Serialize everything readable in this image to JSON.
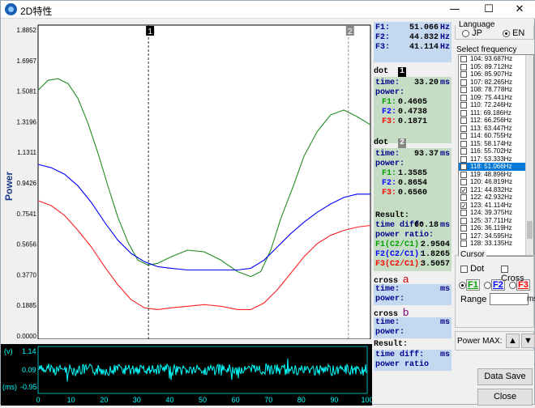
{
  "window": {
    "title": "2D特性",
    "min": "—",
    "max": "☐",
    "close": "✕"
  },
  "plot": {
    "ylabel": "Power",
    "yticks": [
      "1.8852",
      "1.6967",
      "1.5081",
      "1.3196",
      "1.1311",
      "0.9426",
      "0.7541",
      "0.5656",
      "0.3770",
      "0.1885",
      "0.0000"
    ],
    "cursor1_label": "1",
    "cursor2_label": "2",
    "colors": {
      "green": "#228b22",
      "blue": "#0000ff",
      "red": "#ff2020",
      "bg": "#ffffff"
    }
  },
  "chart_data": {
    "type": "line",
    "ylabel": "Power",
    "ylim": [
      0,
      1.8852
    ],
    "xlim": [
      0,
      100
    ],
    "series": [
      {
        "name": "F1",
        "color": "#228b22",
        "x": [
          0,
          3,
          6,
          9,
          12,
          15,
          18,
          21,
          24,
          27,
          30,
          33,
          36,
          40,
          45,
          50,
          55,
          60,
          64,
          67,
          70,
          73,
          77,
          80,
          84,
          88,
          92,
          96,
          100
        ],
        "values": [
          1.5,
          1.56,
          1.57,
          1.54,
          1.45,
          1.3,
          1.12,
          0.92,
          0.73,
          0.58,
          0.47,
          0.44,
          0.45,
          0.49,
          0.53,
          0.52,
          0.47,
          0.4,
          0.37,
          0.4,
          0.53,
          0.72,
          0.93,
          1.1,
          1.25,
          1.35,
          1.38,
          1.34,
          1.29
        ]
      },
      {
        "name": "F2",
        "color": "#0000ff",
        "x": [
          0,
          4,
          8,
          12,
          16,
          20,
          24,
          28,
          32,
          36,
          40,
          45,
          50,
          55,
          60,
          64,
          68,
          72,
          76,
          80,
          84,
          88,
          92,
          96,
          100
        ],
        "values": [
          1.05,
          1.03,
          0.99,
          0.92,
          0.82,
          0.7,
          0.59,
          0.51,
          0.46,
          0.43,
          0.42,
          0.41,
          0.41,
          0.41,
          0.41,
          0.42,
          0.47,
          0.55,
          0.63,
          0.7,
          0.76,
          0.81,
          0.85,
          0.87,
          0.87
        ]
      },
      {
        "name": "F3",
        "color": "#ff2020",
        "x": [
          0,
          4,
          8,
          12,
          16,
          20,
          24,
          28,
          32,
          36,
          40,
          45,
          50,
          55,
          60,
          64,
          68,
          72,
          76,
          80,
          84,
          88,
          92,
          96,
          100
        ],
        "values": [
          0.83,
          0.8,
          0.74,
          0.65,
          0.55,
          0.43,
          0.32,
          0.23,
          0.18,
          0.17,
          0.18,
          0.19,
          0.2,
          0.19,
          0.17,
          0.17,
          0.21,
          0.29,
          0.39,
          0.49,
          0.57,
          0.62,
          0.65,
          0.67,
          0.68
        ]
      }
    ],
    "cursors": [
      {
        "label": "1",
        "x": 33.2
      },
      {
        "label": "2",
        "x": 93.37
      }
    ]
  },
  "bottom": {
    "ytick_top": "1.14",
    "ytick_mid": "0.09",
    "ytick_bot": "-0.95",
    "unit_top": "(v)",
    "unit_bot": "(ms)",
    "xticks": [
      "0",
      "10",
      "20",
      "30",
      "40",
      "50",
      "60",
      "70",
      "80",
      "90",
      "100"
    ],
    "color": "#00ffff"
  },
  "info": {
    "freqs": [
      {
        "label": "F1:",
        "value": "51.066",
        "unit": "Hz"
      },
      {
        "label": "F2:",
        "value": "44.832",
        "unit": "Hz"
      },
      {
        "label": "F3:",
        "value": "41.114",
        "unit": "Hz"
      }
    ],
    "dot_label": "dot",
    "dot1": {
      "num": "1",
      "time_label": "time:",
      "time_value": "33.20",
      "time_unit": "ms",
      "power_label": "power:",
      "f1": "0.4605",
      "f2": "0.4738",
      "f3": "0.1871"
    },
    "dot2": {
      "num": "2",
      "time_label": "time:",
      "time_value": "93.37",
      "time_unit": "ms",
      "power_label": "power:",
      "f1": "1.3585",
      "f2": "0.8654",
      "f3": "0.6560"
    },
    "f1_label": "F1:",
    "f2_label": "F2:",
    "f3_label": "F3:",
    "result": {
      "label": "Result:",
      "timediff_label": "time diff:",
      "timediff_value": "60.18",
      "timediff_unit": "ms",
      "ratio_label": "power ratio:",
      "r1_label": "F1(C2/C1):",
      "r1": "2.9504",
      "r2_label": "F2(C2/C1):",
      "r2": "1.8265",
      "r3_label": "F3(C2/C1):",
      "r3": "3.5057"
    },
    "cross_a": {
      "label": "cross",
      "letter": "a",
      "time_label": "time:",
      "time_unit": "ms",
      "power_label": "power:"
    },
    "cross_b": {
      "label": "cross",
      "letter": "b",
      "time_label": "time:",
      "time_unit": "ms",
      "power_label": "power:"
    },
    "result2": {
      "label": "Result:",
      "timediff_label": "time diff:",
      "timediff_unit": "ms",
      "ratio_label": "power ratio"
    }
  },
  "right": {
    "language_label": "Language",
    "jp": "JP",
    "en": "EN",
    "select_freq_label": "Select frequency",
    "freq_items": [
      {
        "text": "104:  93.687Hz",
        "checked": false,
        "selected": false
      },
      {
        "text": "105:  89.712Hz",
        "checked": false,
        "selected": false
      },
      {
        "text": "106:  85.907Hz",
        "checked": false,
        "selected": false
      },
      {
        "text": "107:  82.265Hz",
        "checked": false,
        "selected": false
      },
      {
        "text": "108:  78.778Hz",
        "checked": false,
        "selected": false
      },
      {
        "text": "109:  75.441Hz",
        "checked": false,
        "selected": false
      },
      {
        "text": "110:  72.246Hz",
        "checked": false,
        "selected": false
      },
      {
        "text": "111:  69.186Hz",
        "checked": false,
        "selected": false
      },
      {
        "text": "112:  66.256Hz",
        "checked": false,
        "selected": false
      },
      {
        "text": "113:  63.447Hz",
        "checked": false,
        "selected": false
      },
      {
        "text": "114:  60.755Hz",
        "checked": false,
        "selected": false
      },
      {
        "text": "115:  58.174Hz",
        "checked": false,
        "selected": false
      },
      {
        "text": "116:  55.702Hz",
        "checked": false,
        "selected": false
      },
      {
        "text": "117:  53.333Hz",
        "checked": false,
        "selected": false
      },
      {
        "text": "118:  51.066Hz",
        "checked": true,
        "selected": true
      },
      {
        "text": "119:  48.896Hz",
        "checked": false,
        "selected": false
      },
      {
        "text": "120:  46.819Hz",
        "checked": false,
        "selected": false
      },
      {
        "text": "121:  44.832Hz",
        "checked": true,
        "selected": false
      },
      {
        "text": "122:  42.932Hz",
        "checked": false,
        "selected": false
      },
      {
        "text": "123:  41.114Hz",
        "checked": true,
        "selected": false
      },
      {
        "text": "124:  39.375Hz",
        "checked": false,
        "selected": false
      },
      {
        "text": "125:  37.711Hz",
        "checked": false,
        "selected": false
      },
      {
        "text": "126:  36.119Hz",
        "checked": false,
        "selected": false
      },
      {
        "text": "127:  34.595Hz",
        "checked": false,
        "selected": false
      },
      {
        "text": "128:  33.135Hz",
        "checked": false,
        "selected": false
      }
    ],
    "cursor_label": "Cursor",
    "dot": "Dot",
    "cross": "Cross",
    "f1": "F1",
    "f2": "F2",
    "f3": "F3",
    "range": "Range",
    "range_unit": "ms",
    "power_max": "Power MAX:",
    "up": "▲",
    "down": "▼",
    "data_save": "Data Save",
    "close": "Close"
  }
}
